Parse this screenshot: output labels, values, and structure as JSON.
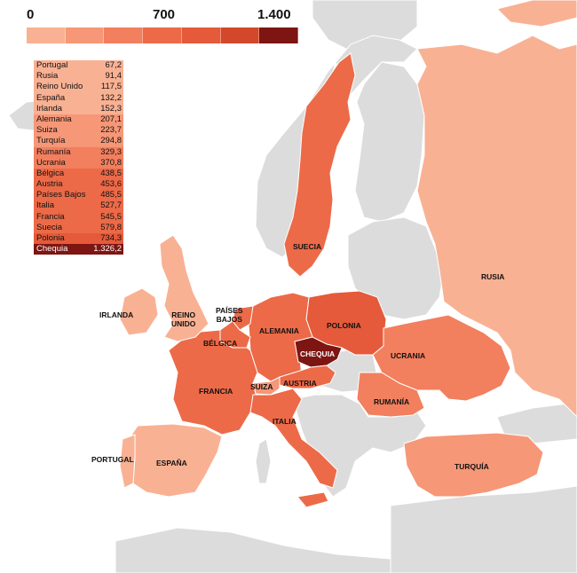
{
  "legend": {
    "scale_labels": [
      "0",
      "700",
      "1.400"
    ],
    "scale_colors": [
      "#f9b193",
      "#f69777",
      "#f27f5e",
      "#ec6a48",
      "#e55a3a",
      "#d3482b",
      "#7d1512"
    ]
  },
  "table": [
    {
      "name": "Portugal",
      "value": "67,2",
      "color": "#f9b193"
    },
    {
      "name": "Rusia",
      "value": "91,4",
      "color": "#f9b193"
    },
    {
      "name": "Reino Unido",
      "value": "117,5",
      "color": "#f9b193"
    },
    {
      "name": "España",
      "value": "132,2",
      "color": "#f9b193"
    },
    {
      "name": "Irlanda",
      "value": "152,3",
      "color": "#f9b193"
    },
    {
      "name": "Alemania",
      "value": "207,1",
      "color": "#f69777"
    },
    {
      "name": "Suiza",
      "value": "223,7",
      "color": "#f69777"
    },
    {
      "name": "Turquía",
      "value": "294,8",
      "color": "#f69777"
    },
    {
      "name": "Rumanía",
      "value": "329,3",
      "color": "#f27f5e"
    },
    {
      "name": "Ucrania",
      "value": "370,8",
      "color": "#f27f5e"
    },
    {
      "name": "Bélgica",
      "value": "438,5",
      "color": "#ec6a48"
    },
    {
      "name": "Austria",
      "value": "453,6",
      "color": "#ec6a48"
    },
    {
      "name": "Países Bajos",
      "value": "485,5",
      "color": "#ec6a48"
    },
    {
      "name": "Italia",
      "value": "527,7",
      "color": "#ec6a48"
    },
    {
      "name": "Francia",
      "value": "545,5",
      "color": "#ec6a48"
    },
    {
      "name": "Suecia",
      "value": "579,8",
      "color": "#ec6a48"
    },
    {
      "name": "Polonia",
      "value": "734,3",
      "color": "#e55a3a"
    },
    {
      "name": "Chequia",
      "value": "1.326,2",
      "color": "#7d1512"
    }
  ],
  "map_labels": {
    "suecia": "SUECIA",
    "rusia": "RUSIA",
    "irlanda": "IRLANDA",
    "reino_unido": "REINO\nUNIDO",
    "paises_bajos": "PAÍSES\nBAJOS",
    "belgica": "BÉLGICA",
    "alemania": "ALEMANIA",
    "polonia": "POLONIA",
    "chequia": "CHEQUIA",
    "ucrania": "UCRANIA",
    "francia": "FRANCIA",
    "suiza": "SUIZA",
    "austria": "AUSTRIA",
    "rumania": "RUMANÍA",
    "italia": "ITALIA",
    "portugal": "PORTUGAL",
    "espana": "ESPAÑA",
    "turquia": "TURQUÍA"
  },
  "colors": {
    "non_data_land": "#dcdcdc",
    "border": "#ffffff",
    "russia": "#f9b193",
    "low": "#f9b193",
    "mid_low": "#f69777",
    "mid": "#f27f5e",
    "high": "#ec6a48",
    "polonia": "#e55a3a",
    "chequia": "#7d1512"
  }
}
